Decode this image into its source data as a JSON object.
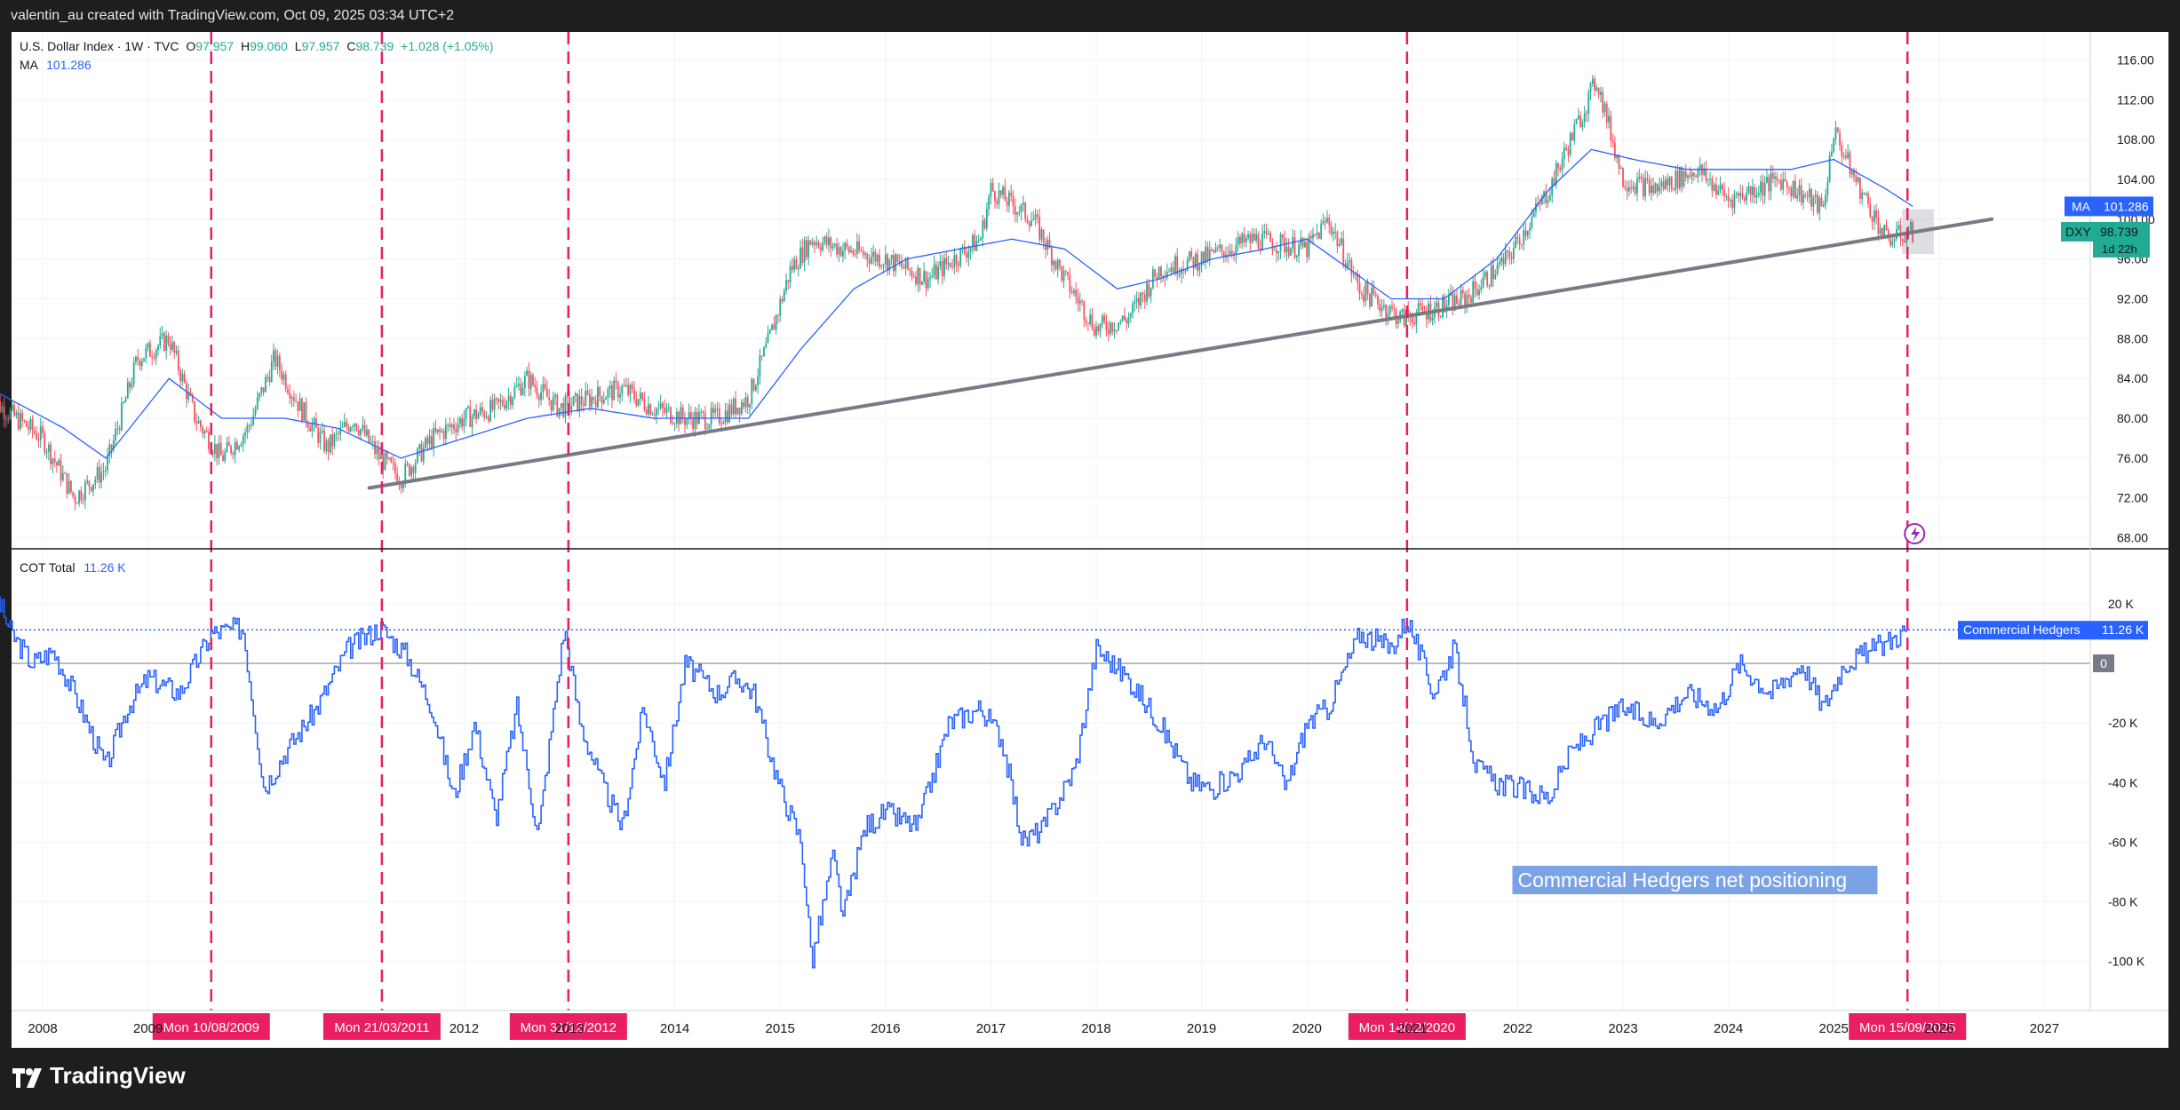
{
  "header": {
    "text": "valentin_au created with TradingView.com, Oct 09, 2025 03:34 UTC+2"
  },
  "legend": {
    "symbol": "U.S. Dollar Index · 1W · TVC",
    "o_label": "O",
    "o_value": "97.957",
    "h_label": "H",
    "h_value": "99.060",
    "l_label": "L",
    "l_value": "97.957",
    "c_label": "C",
    "c_value": "98.739",
    "change": "+1.028 (+1.05%)",
    "ma_label": "MA",
    "ma_value": "101.286",
    "cot_label": "COT Total",
    "cot_value": "11.26 K"
  },
  "price_labels": {
    "ma_tag": "MA",
    "ma_value": "101.286",
    "dxy_tag": "DXY",
    "dxy_value": "98.739",
    "countdown": "1d 22h"
  },
  "cot_labels": {
    "series_tag": "Commercial Hedgers",
    "series_value": "11.26 K",
    "zero": "0"
  },
  "annotation": "Commercial Hedgers net positioning",
  "marker_dates": [
    "Mon 10/08/2009",
    "Mon 21/03/2011",
    "Mon 31/12/2012",
    "Mon 14/12/2020",
    "Mon 15/09/2025"
  ],
  "brand": "TradingView",
  "colors": {
    "up": "#22ab94",
    "down": "#f7525f",
    "ma": "#2962ff",
    "cot": "#2962ff",
    "marker": "#e91e63",
    "trendline": "#787b86"
  },
  "chart_data": [
    {
      "type": "line",
      "title": "U.S. Dollar Index · 1W · TVC",
      "note": "weekly candlesticks",
      "x_ticks": [
        "2008",
        "2009",
        "2012",
        "2013",
        "2014",
        "2015",
        "2016",
        "2017",
        "2018",
        "2019",
        "2020",
        "2021",
        "2022",
        "2023",
        "2024",
        "2025",
        "2026",
        "2027"
      ],
      "y_ticks": [
        68,
        72,
        76,
        80,
        84,
        88,
        92,
        96,
        100,
        104,
        108,
        112,
        116
      ],
      "ylim": [
        66,
        118
      ],
      "series": [
        {
          "name": "DXY",
          "x": [
            2007.5,
            2008.0,
            2008.3,
            2008.6,
            2008.9,
            2009.2,
            2009.45,
            2009.7,
            2009.95,
            2010.2,
            2010.45,
            2010.7,
            2010.95,
            2011.2,
            2011.4,
            2011.7,
            2012.0,
            2012.3,
            2012.6,
            2012.9,
            2013.2,
            2013.5,
            2013.8,
            2014.1,
            2014.4,
            2014.7,
            2014.9,
            2015.1,
            2015.3,
            2015.6,
            2016.0,
            2016.4,
            2016.9,
            2017.0,
            2017.4,
            2017.7,
            2018.0,
            2018.3,
            2018.6,
            2019.0,
            2019.5,
            2020.0,
            2020.2,
            2020.5,
            2020.9,
            2021.2,
            2021.5,
            2021.9,
            2022.3,
            2022.75,
            2023.0,
            2023.3,
            2023.7,
            2024.0,
            2024.5,
            2024.9,
            2025.0,
            2025.2,
            2025.5,
            2025.75
          ],
          "values": [
            82,
            78,
            72,
            75,
            86,
            88,
            80,
            76,
            79,
            86,
            81,
            77,
            80,
            76,
            74,
            78,
            80,
            81,
            84,
            81,
            82,
            83,
            81,
            80,
            80,
            82,
            88,
            95,
            98,
            97,
            96,
            94,
            98,
            103,
            100,
            94,
            89,
            90,
            95,
            96,
            98,
            97,
            100,
            93,
            90,
            91,
            92,
            96,
            103,
            114,
            104,
            103,
            105,
            102,
            104,
            101,
            109,
            104,
            98,
            98.739
          ]
        },
        {
          "name": "MA",
          "x": [
            2007.5,
            2008.2,
            2008.6,
            2009.2,
            2009.7,
            2010.3,
            2010.8,
            2011.4,
            2012.0,
            2012.6,
            2013.2,
            2013.8,
            2014.4,
            2014.7,
            2015.2,
            2015.7,
            2016.2,
            2016.7,
            2017.2,
            2017.7,
            2018.2,
            2018.6,
            2019.1,
            2019.6,
            2020.0,
            2020.4,
            2020.8,
            2021.3,
            2021.8,
            2022.3,
            2022.7,
            2023.1,
            2023.6,
            2024.1,
            2024.6,
            2025.0,
            2025.5,
            2025.75
          ],
          "values": [
            83,
            79,
            76,
            84,
            80,
            80,
            79,
            76,
            78,
            80,
            81,
            80,
            80,
            80,
            87,
            93,
            96,
            97,
            98,
            97,
            93,
            94,
            96,
            97,
            98,
            95,
            92,
            92,
            96,
            103,
            107,
            106,
            105,
            105,
            105,
            106,
            103,
            101.286
          ]
        },
        {
          "name": "Trendline",
          "x": [
            2011.1,
            2026.5
          ],
          "values": [
            73,
            100
          ]
        }
      ]
    },
    {
      "type": "line",
      "title": "COT Total",
      "y_ticks": [
        "20 K",
        "0",
        "-20 K",
        "-40 K",
        "-60 K",
        "-80 K",
        "-100 K"
      ],
      "ylim": [
        -112,
        28
      ],
      "series": [
        {
          "name": "Commercial Hedgers",
          "x": [
            2007.5,
            2007.7,
            2007.9,
            2008.1,
            2008.3,
            2008.6,
            2008.8,
            2009.0,
            2009.3,
            2009.6,
            2009.9,
            2010.1,
            2010.3,
            2010.6,
            2010.9,
            2011.2,
            2011.45,
            2011.7,
            2011.9,
            2012.1,
            2012.3,
            2012.5,
            2012.7,
            2012.95,
            2013.1,
            2013.3,
            2013.5,
            2013.7,
            2013.9,
            2014.1,
            2014.4,
            2014.6,
            2014.75,
            2014.9,
            2015.0,
            2015.2,
            2015.3,
            2015.5,
            2015.6,
            2015.8,
            2016.0,
            2016.3,
            2016.6,
            2016.9,
            2017.1,
            2017.3,
            2017.5,
            2017.8,
            2018.0,
            2018.3,
            2018.6,
            2018.9,
            2019.1,
            2019.4,
            2019.6,
            2019.8,
            2020.0,
            2020.2,
            2020.5,
            2020.8,
            2020.95,
            2021.2,
            2021.4,
            2021.6,
            2021.8,
            2022.0,
            2022.3,
            2022.5,
            2022.8,
            2023.0,
            2023.3,
            2023.6,
            2023.9,
            2024.1,
            2024.4,
            2024.7,
            2024.9,
            2025.1,
            2025.4,
            2025.7
          ],
          "values": [
            28,
            10,
            0,
            4,
            -10,
            -35,
            -15,
            -5,
            -10,
            10,
            12,
            -42,
            -30,
            -15,
            5,
            12,
            3,
            -15,
            -45,
            -20,
            -52,
            -15,
            -58,
            12,
            -20,
            -40,
            -55,
            -15,
            -40,
            0,
            -10,
            -5,
            -10,
            -30,
            -42,
            -60,
            -100,
            -65,
            -85,
            -55,
            -50,
            -55,
            -20,
            -15,
            -25,
            -60,
            -55,
            -35,
            5,
            -5,
            -20,
            -40,
            -42,
            -35,
            -25,
            -42,
            -20,
            -15,
            10,
            5,
            15,
            -10,
            5,
            -35,
            -40,
            -42,
            -45,
            -30,
            -20,
            -15,
            -20,
            -10,
            -15,
            0,
            -10,
            0,
            -15,
            0,
            5,
            11.26
          ]
        }
      ]
    }
  ]
}
